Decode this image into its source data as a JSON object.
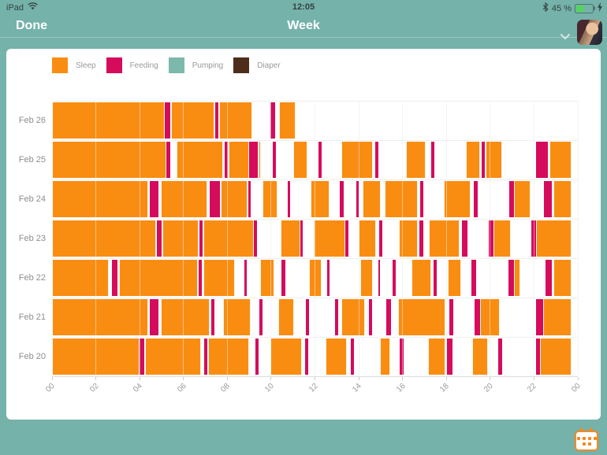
{
  "status_bar": {
    "device": "iPad",
    "time": "12:05",
    "battery": "45 %"
  },
  "nav_bar": {
    "done_label": "Done",
    "title": "Week"
  },
  "legend": [
    {
      "key": "sleep",
      "label": "Sleep",
      "color": "#f98d12"
    },
    {
      "key": "feeding",
      "label": "Feeding",
      "color": "#d50b5c"
    },
    {
      "key": "pumping",
      "label": "Pumping",
      "color": "#7db8ac"
    },
    {
      "key": "diaper",
      "label": "Diaper",
      "color": "#4e2e1b"
    }
  ],
  "colors": {
    "background": "#74b2aa",
    "card": "#ffffff",
    "gridline": "#ececec",
    "accent_orange": "#f6881f"
  },
  "chart_data": {
    "type": "bar",
    "variant": "weekly-activity-timeline",
    "title": "Week",
    "xlabel": "hour of day",
    "ylabel": "date",
    "x_range": [
      0,
      24
    ],
    "x_tick_interval_hours": 2,
    "x_ticks": [
      "00",
      "02",
      "04",
      "06",
      "08",
      "10",
      "12",
      "14",
      "16",
      "18",
      "20",
      "22",
      "00"
    ],
    "grid": true,
    "legend_position": "top-left",
    "series_types": [
      {
        "name": "Sleep",
        "key": "sleep",
        "color": "#f98d12"
      },
      {
        "name": "Feeding",
        "key": "feeding",
        "color": "#d50b5c"
      },
      {
        "name": "Pumping",
        "key": "pumping",
        "color": "#7db8ac"
      },
      {
        "name": "Diaper",
        "key": "diaper",
        "color": "#4e2e1b"
      }
    ],
    "rows": [
      {
        "label": "Feb 26",
        "segments": [
          [
            0,
            5.15,
            "sleep"
          ],
          [
            5.15,
            5.4,
            "feeding"
          ],
          [
            5.45,
            7.42,
            "sleep"
          ],
          [
            7.45,
            7.6,
            "feeding"
          ],
          [
            7.63,
            9.15,
            "sleep"
          ],
          [
            9.95,
            10.2,
            "feeding"
          ],
          [
            10.35,
            11.12,
            "sleep"
          ]
        ]
      },
      {
        "label": "Feb 25",
        "segments": [
          [
            0,
            5.2,
            "sleep"
          ],
          [
            5.22,
            5.38,
            "feeding"
          ],
          [
            5.7,
            7.8,
            "sleep"
          ],
          [
            7.87,
            8.02,
            "feeding"
          ],
          [
            8.05,
            9.0,
            "sleep"
          ],
          [
            9.0,
            9.4,
            "feeding"
          ],
          [
            9.42,
            9.52,
            "sleep"
          ],
          [
            10.08,
            10.22,
            "feeding"
          ],
          [
            11.0,
            11.65,
            "sleep"
          ],
          [
            12.15,
            12.3,
            "feeding"
          ],
          [
            13.2,
            14.65,
            "sleep"
          ],
          [
            14.75,
            14.9,
            "feeding"
          ],
          [
            16.15,
            17.05,
            "sleep"
          ],
          [
            17.3,
            17.45,
            "feeding"
          ],
          [
            18.9,
            19.55,
            "sleep"
          ],
          [
            19.6,
            19.75,
            "feeding"
          ],
          [
            19.8,
            20.55,
            "sleep"
          ],
          [
            22.1,
            22.65,
            "feeding"
          ],
          [
            22.7,
            23.72,
            "sleep"
          ]
        ]
      },
      {
        "label": "Feb 24",
        "segments": [
          [
            0,
            4.4,
            "sleep"
          ],
          [
            4.45,
            4.85,
            "feeding"
          ],
          [
            4.95,
            7.1,
            "sleep"
          ],
          [
            7.2,
            7.65,
            "feeding"
          ],
          [
            7.7,
            8.93,
            "sleep"
          ],
          [
            8.95,
            9.05,
            "feeding"
          ],
          [
            9.6,
            10.3,
            "sleep"
          ],
          [
            10.75,
            10.88,
            "feeding"
          ],
          [
            11.8,
            12.68,
            "sleep"
          ],
          [
            13.15,
            13.3,
            "feeding"
          ],
          [
            13.88,
            13.98,
            "feeding"
          ],
          [
            14.18,
            15.0,
            "sleep"
          ],
          [
            15.18,
            16.7,
            "sleep"
          ],
          [
            16.8,
            16.95,
            "feeding"
          ],
          [
            17.9,
            19.1,
            "sleep"
          ],
          [
            19.25,
            19.42,
            "feeding"
          ],
          [
            20.88,
            21.08,
            "feeding"
          ],
          [
            21.08,
            21.85,
            "sleep"
          ],
          [
            22.47,
            22.8,
            "feeding"
          ],
          [
            22.87,
            23.72,
            "sleep"
          ]
        ]
      },
      {
        "label": "Feb 23",
        "segments": [
          [
            0,
            4.75,
            "sleep"
          ],
          [
            4.8,
            5.0,
            "feeding"
          ],
          [
            5.05,
            6.7,
            "sleep"
          ],
          [
            6.73,
            6.88,
            "feeding"
          ],
          [
            6.91,
            9.2,
            "sleep"
          ],
          [
            9.2,
            9.35,
            "feeding"
          ],
          [
            10.45,
            11.35,
            "sleep"
          ],
          [
            11.35,
            11.46,
            "feeding"
          ],
          [
            11.95,
            13.4,
            "sleep"
          ],
          [
            13.4,
            13.53,
            "feeding"
          ],
          [
            14.0,
            14.78,
            "sleep"
          ],
          [
            14.93,
            15.06,
            "feeding"
          ],
          [
            15.85,
            16.68,
            "sleep"
          ],
          [
            16.76,
            16.94,
            "feeding"
          ],
          [
            17.2,
            18.62,
            "sleep"
          ],
          [
            18.72,
            18.98,
            "feeding"
          ],
          [
            19.95,
            20.16,
            "feeding"
          ],
          [
            20.16,
            20.93,
            "sleep"
          ],
          [
            21.86,
            22.1,
            "feeding"
          ],
          [
            22.11,
            23.72,
            "sleep"
          ]
        ]
      },
      {
        "label": "Feb 22",
        "segments": [
          [
            0,
            2.6,
            "sleep"
          ],
          [
            2.75,
            3.0,
            "feeding"
          ],
          [
            3.05,
            6.65,
            "sleep"
          ],
          [
            6.7,
            6.85,
            "feeding"
          ],
          [
            6.9,
            8.35,
            "sleep"
          ],
          [
            8.78,
            8.9,
            "feeding"
          ],
          [
            9.5,
            10.15,
            "sleep"
          ],
          [
            10.46,
            10.64,
            "feeding"
          ],
          [
            11.72,
            12.32,
            "sleep"
          ],
          [
            12.56,
            12.68,
            "feeding"
          ],
          [
            14.06,
            14.66,
            "sleep"
          ],
          [
            14.88,
            14.95,
            "feeding"
          ],
          [
            15.56,
            15.68,
            "feeding"
          ],
          [
            16.4,
            17.3,
            "sleep"
          ],
          [
            17.42,
            17.56,
            "feeding"
          ],
          [
            18.08,
            18.68,
            "sleep"
          ],
          [
            19.13,
            19.35,
            "feeding"
          ],
          [
            20.85,
            21.09,
            "feeding"
          ],
          [
            21.09,
            21.36,
            "sleep"
          ],
          [
            22.51,
            22.81,
            "feeding"
          ],
          [
            22.87,
            23.72,
            "sleep"
          ]
        ]
      },
      {
        "label": "Feb 21",
        "segments": [
          [
            0,
            4.4,
            "sleep"
          ],
          [
            4.45,
            4.85,
            "feeding"
          ],
          [
            4.95,
            7.2,
            "sleep"
          ],
          [
            7.28,
            7.4,
            "feeding"
          ],
          [
            7.8,
            9.07,
            "sleep"
          ],
          [
            9.45,
            9.6,
            "feeding"
          ],
          [
            10.33,
            11.03,
            "sleep"
          ],
          [
            11.6,
            11.72,
            "feeding"
          ],
          [
            12.92,
            13.07,
            "feeding"
          ],
          [
            13.2,
            14.28,
            "sleep"
          ],
          [
            14.46,
            14.6,
            "feeding"
          ],
          [
            15.26,
            15.47,
            "feeding"
          ],
          [
            15.8,
            17.96,
            "sleep"
          ],
          [
            18.12,
            18.3,
            "feeding"
          ],
          [
            19.29,
            19.53,
            "feeding"
          ],
          [
            19.53,
            20.43,
            "sleep"
          ],
          [
            22.11,
            22.41,
            "feeding"
          ],
          [
            22.41,
            23.72,
            "sleep"
          ]
        ]
      },
      {
        "label": "Feb 20",
        "segments": [
          [
            0,
            4.0,
            "sleep"
          ],
          [
            4.0,
            4.2,
            "feeding"
          ],
          [
            4.25,
            6.8,
            "sleep"
          ],
          [
            6.95,
            7.1,
            "feeding"
          ],
          [
            7.13,
            9.0,
            "sleep"
          ],
          [
            9.29,
            9.41,
            "feeding"
          ],
          [
            9.97,
            11.42,
            "sleep"
          ],
          [
            11.54,
            11.68,
            "feeding"
          ],
          [
            12.5,
            13.46,
            "sleep"
          ],
          [
            13.62,
            13.78,
            "feeding"
          ],
          [
            14.96,
            15.44,
            "sleep"
          ],
          [
            15.88,
            16.04,
            "feeding"
          ],
          [
            17.16,
            17.96,
            "sleep"
          ],
          [
            18.02,
            18.29,
            "feeding"
          ],
          [
            19.17,
            19.89,
            "sleep"
          ],
          [
            20.37,
            20.53,
            "feeding"
          ],
          [
            22.11,
            22.29,
            "feeding"
          ],
          [
            22.29,
            23.72,
            "sleep"
          ]
        ]
      }
    ]
  }
}
